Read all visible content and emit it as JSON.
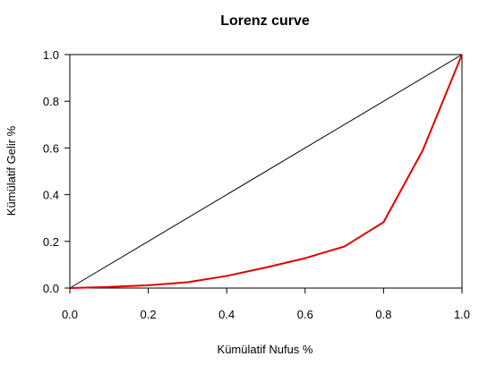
{
  "chart_data": {
    "type": "line",
    "title": "Lorenz curve",
    "xlabel": "Kümülatif Nufus %",
    "ylabel": "Kümülatif Gelir %",
    "xlim": [
      0,
      1
    ],
    "ylim": [
      0,
      1
    ],
    "x_ticks": [
      "0.0",
      "0.2",
      "0.4",
      "0.6",
      "0.8",
      "1.0"
    ],
    "y_ticks": [
      "0.0",
      "0.2",
      "0.4",
      "0.6",
      "0.8",
      "1.0"
    ],
    "grid": false,
    "series": [
      {
        "color": "#000000",
        "x": [
          0,
          1
        ],
        "y": [
          0,
          1
        ]
      },
      {
        "color": "#e00000",
        "x": [
          0,
          0.1,
          0.2,
          0.3,
          0.4,
          0.5,
          0.6,
          0.7,
          0.8,
          0.9,
          1.0
        ],
        "y": [
          0,
          0.005,
          0.012,
          0.025,
          0.052,
          0.088,
          0.128,
          0.178,
          0.282,
          0.59,
          1.0
        ]
      }
    ]
  }
}
